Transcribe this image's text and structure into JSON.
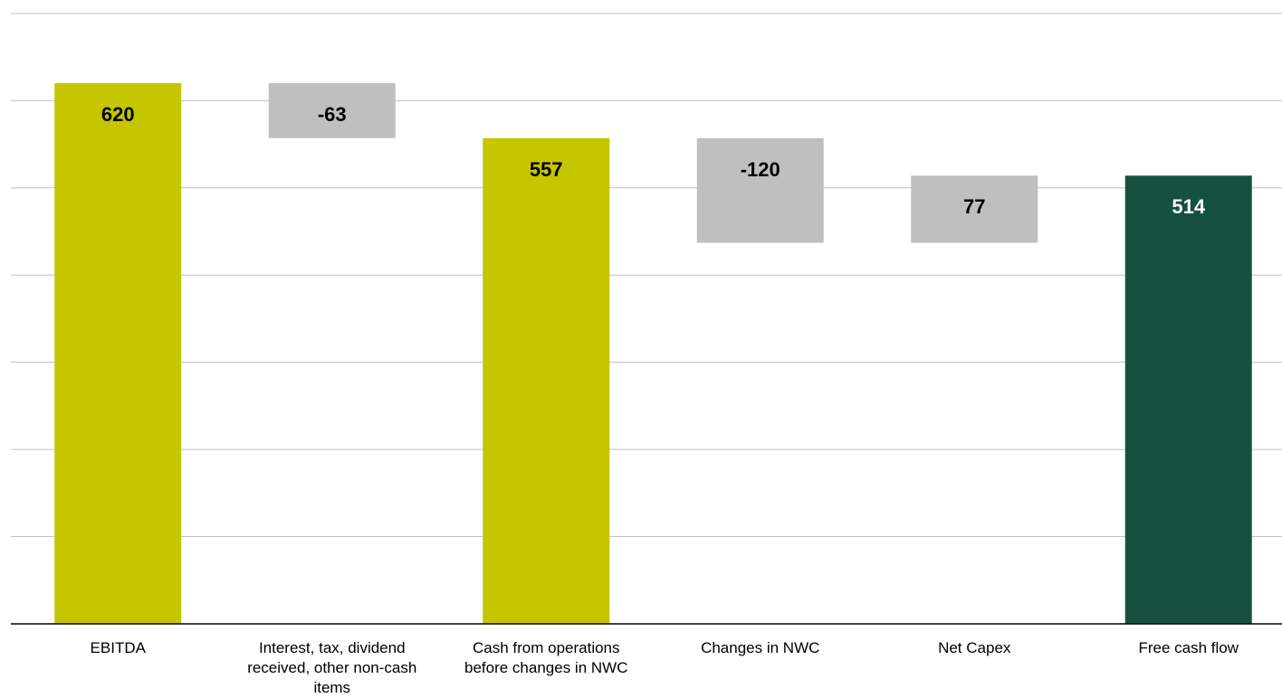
{
  "chart_data": {
    "type": "bar",
    "subtype": "waterfall",
    "title": "",
    "xlabel": "",
    "ylabel": "",
    "ylim": [
      0,
      700
    ],
    "grid": true,
    "legend": "none",
    "categories": [
      "EBITDA",
      "Interest, tax, dividend received, other non-cash items",
      "Cash from operations before changes in NWC",
      "Changes in NWC",
      "Net Capex",
      "Free cash flow"
    ],
    "category_lines": [
      [
        "EBITDA"
      ],
      [
        "Interest, tax, dividend",
        "received, other non-cash",
        "items"
      ],
      [
        "Cash from operations",
        "before changes in NWC"
      ],
      [
        "Changes in NWC"
      ],
      [
        "Net Capex"
      ],
      [
        "Free cash flow"
      ]
    ],
    "bars": [
      {
        "kind": "total",
        "start": 0,
        "end": 620,
        "label": "620",
        "color": "#c5c500",
        "label_color": "#000000"
      },
      {
        "kind": "delta",
        "start": 620,
        "end": 557,
        "label": "-63",
        "color": "#bfbfbf",
        "label_color": "#000000"
      },
      {
        "kind": "total",
        "start": 0,
        "end": 557,
        "label": "557",
        "color": "#c5c500",
        "label_color": "#000000"
      },
      {
        "kind": "delta",
        "start": 557,
        "end": 437,
        "label": "-120",
        "color": "#bfbfbf",
        "label_color": "#000000"
      },
      {
        "kind": "delta",
        "start": 437,
        "end": 514,
        "label": "77",
        "color": "#bfbfbf",
        "label_color": "#000000"
      },
      {
        "kind": "total",
        "start": 0,
        "end": 514,
        "label": "514",
        "color": "#165140",
        "label_color": "#ffffff"
      }
    ],
    "gridline_color": "#bfbfbf",
    "axis_color": "#000000"
  }
}
